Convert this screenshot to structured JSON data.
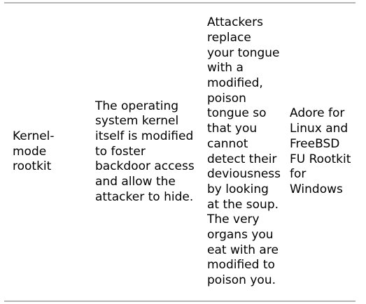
{
  "table": {
    "row": {
      "type_lines": [
        "Kernel-",
        "mode",
        "rootkit"
      ],
      "description_lines": [
        "The operating",
        "system kernel",
        "itself is modified",
        "to foster",
        "backdoor access",
        "and allow the",
        "attacker to hide."
      ],
      "analogy_lines": [
        "Attackers",
        "replace",
        "your tongue",
        "with a",
        "modified,",
        "poison",
        "tongue so",
        "that you",
        "cannot",
        "detect their",
        "deviousness",
        "by looking",
        "at the soup.",
        "The very",
        "organs you",
        "eat with are",
        "modified to",
        "poison you."
      ],
      "example_lines": [
        "Adore for",
        "Linux and",
        "FreeBSD",
        "FU Rootkit",
        "for",
        "Windows"
      ]
    }
  }
}
